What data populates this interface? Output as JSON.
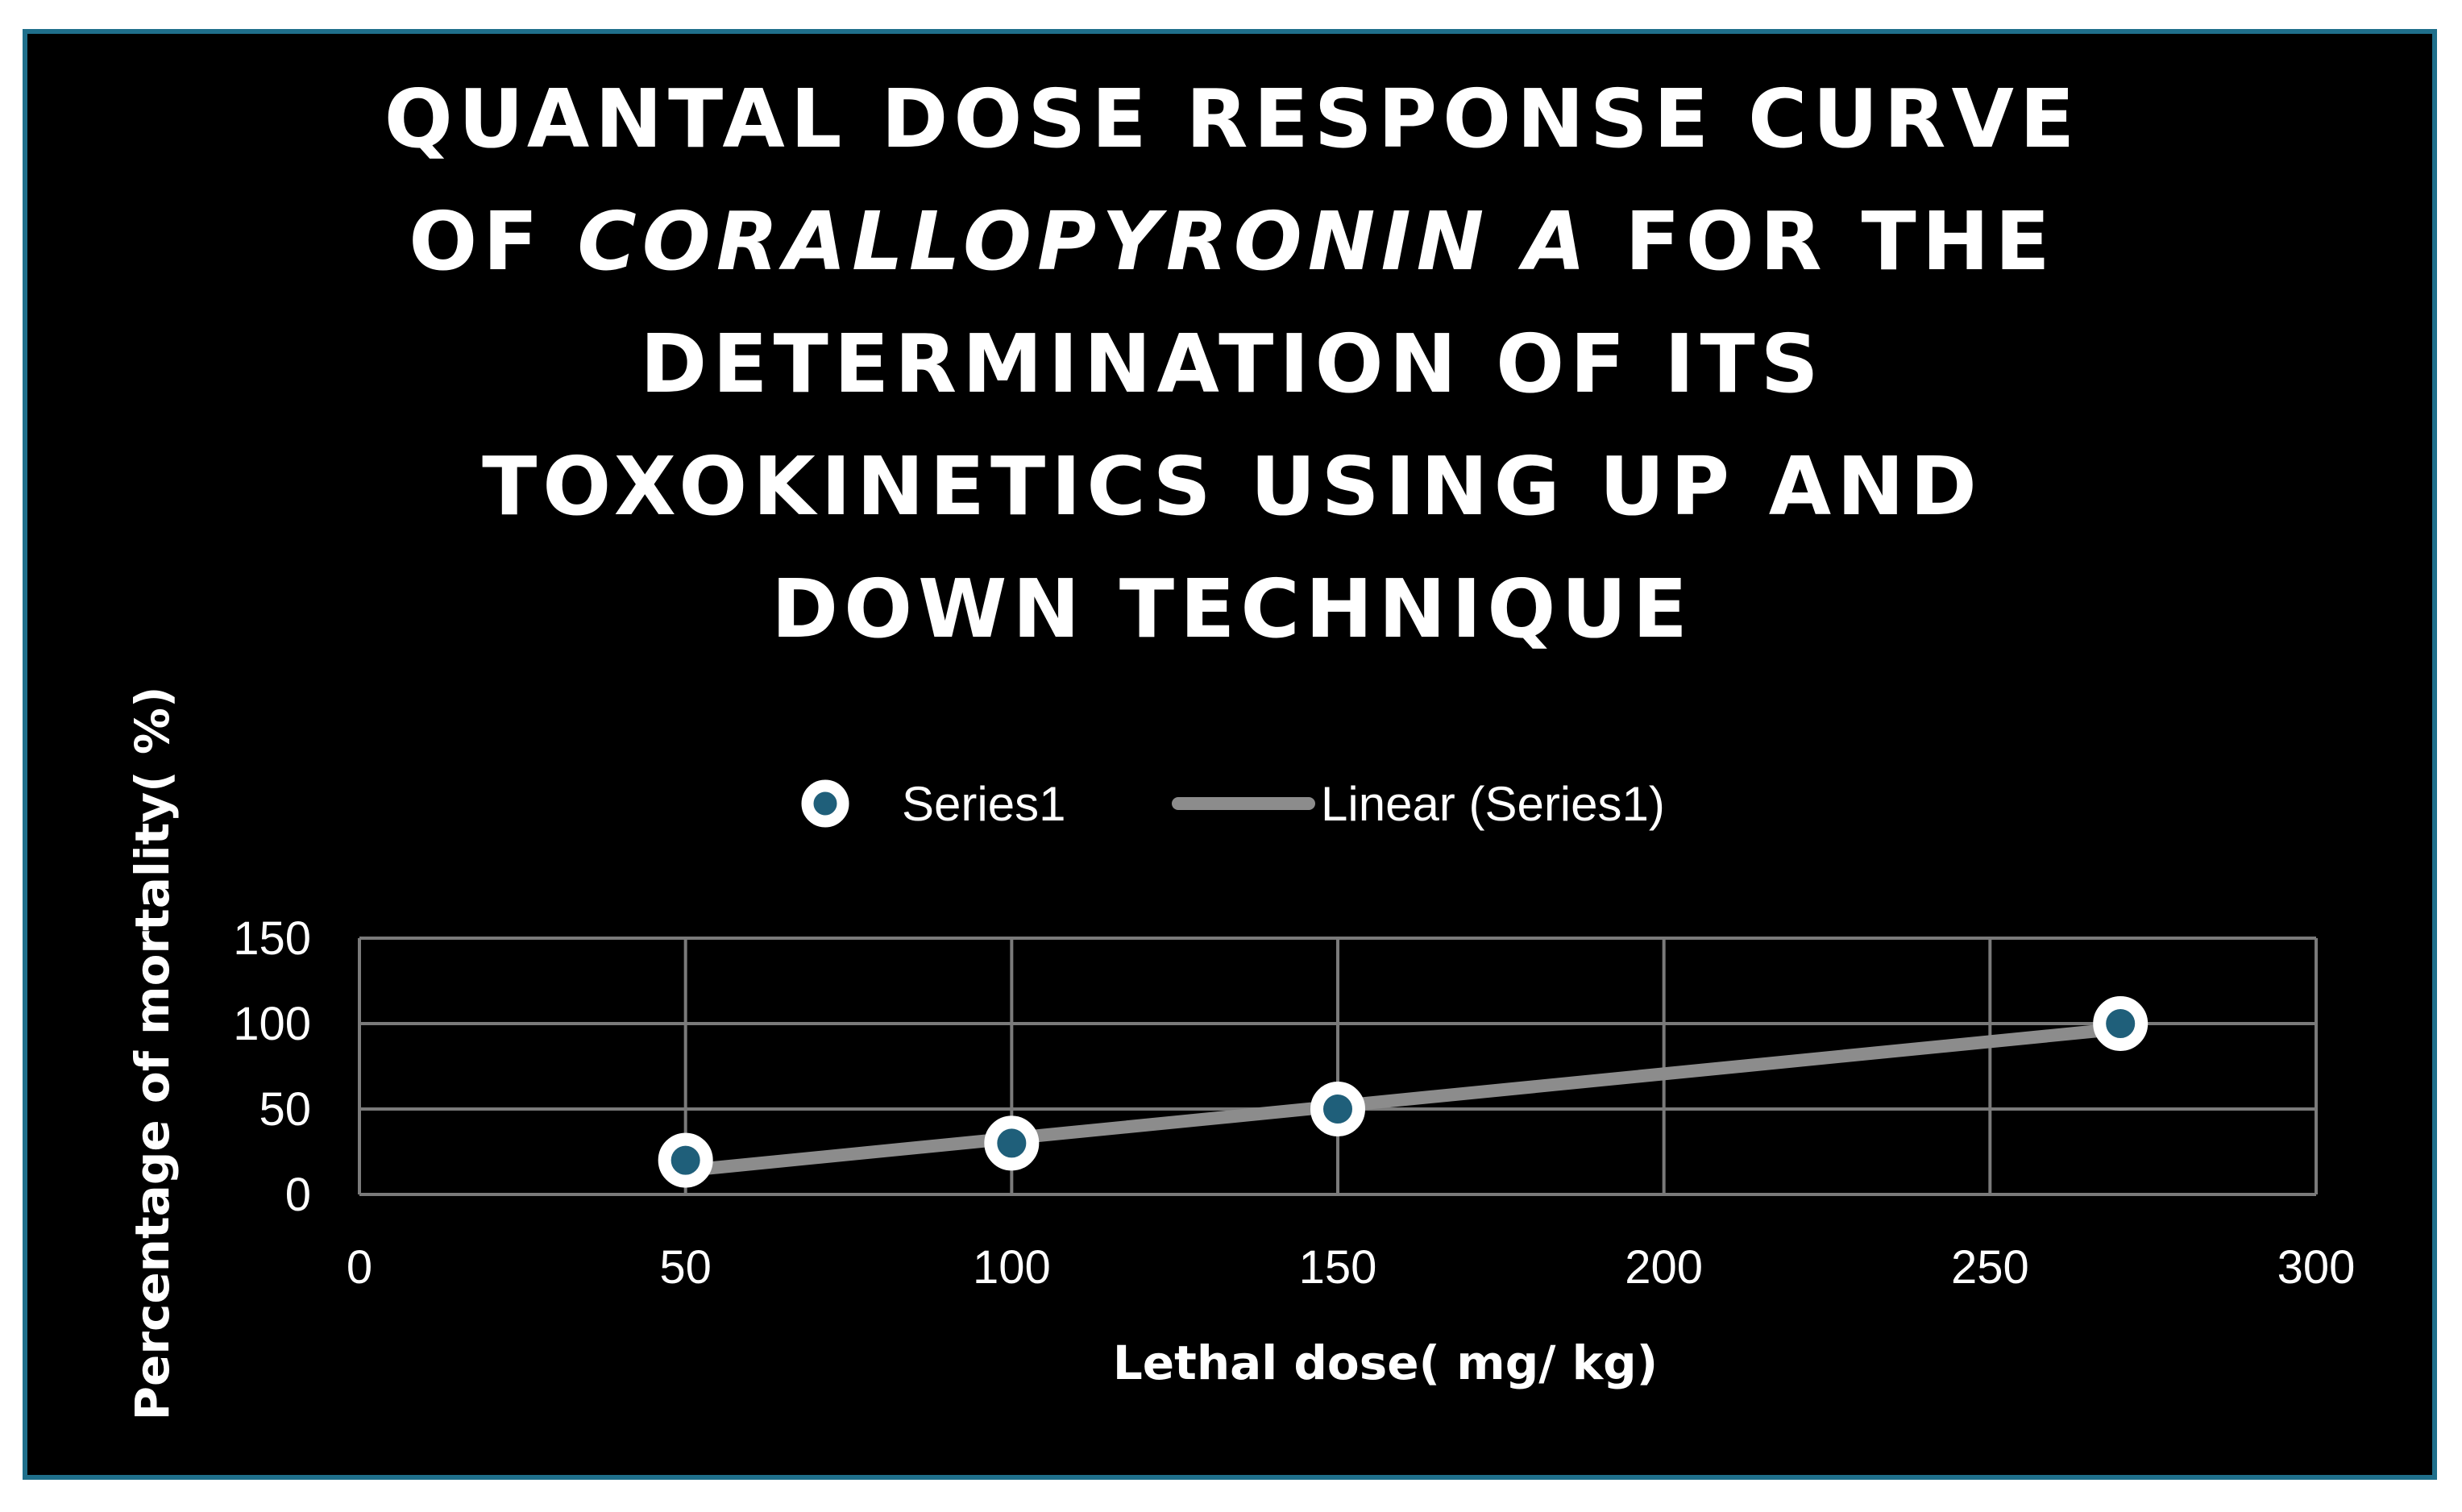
{
  "chart_data": {
    "type": "scatter",
    "title_lines": [
      [
        {
          "text": "QUANTAL DOSE RESPONSE CURVE",
          "italic": false
        }
      ],
      [
        {
          "text": "OF ",
          "italic": false
        },
        {
          "text": "CORALLOPYRONIN A",
          "italic": true
        },
        {
          "text": " FOR THE",
          "italic": false
        }
      ],
      [
        {
          "text": "DETERMINATION OF ITS",
          "italic": false
        }
      ],
      [
        {
          "text": "TOXOKINETICS USING UP AND",
          "italic": false
        }
      ],
      [
        {
          "text": "DOWN TECHNIQUE",
          "italic": false
        }
      ]
    ],
    "xlabel": "Lethal dose( mg/ kg)",
    "ylabel": "Percentage of mortality( %)",
    "xlim": [
      0,
      300
    ],
    "ylim": [
      0,
      150
    ],
    "xticks": [
      0,
      50,
      100,
      150,
      200,
      250,
      300
    ],
    "yticks": [
      0,
      50,
      100,
      150
    ],
    "grid": true,
    "legend_position": "top-center",
    "series": [
      {
        "name": "Series1",
        "x": [
          50,
          100,
          150,
          270
        ],
        "y": [
          20,
          30,
          50,
          100
        ],
        "marker_fill": "#1f5f7a",
        "marker_edge": "#ffffff"
      }
    ],
    "trendline": {
      "name": "Linear (Series1)",
      "type": "linear",
      "x": [
        50,
        270
      ],
      "y": [
        14,
        97
      ],
      "color": "#8c8c8c"
    }
  },
  "colors": {
    "background": "#000000",
    "frame_border": "#1f6f8b",
    "text": "#ffffff",
    "grid": "#7a7a7a"
  }
}
